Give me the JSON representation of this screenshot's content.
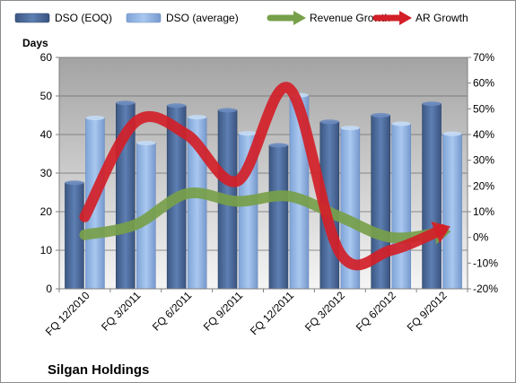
{
  "chart_data": {
    "type": "bar",
    "categories": [
      "FQ 12/2010",
      "FQ 3/2011",
      "FQ 6/2011",
      "FQ 9/2011",
      "FQ 12/2011",
      "FQ 3/2012",
      "FQ 6/2012",
      "FQ 9/2012"
    ],
    "series": [
      {
        "name": "DSO (EOQ)",
        "type": "bar",
        "axis": "left",
        "color": "#4f6e9f",
        "values": [
          27.5,
          48.2,
          47.5,
          46.3,
          37.2,
          43.3,
          45.0,
          48.0
        ]
      },
      {
        "name": "DSO (average)",
        "type": "bar",
        "axis": "left",
        "color": "#8fb3e2",
        "values": [
          44.3,
          37.8,
          44.5,
          40.3,
          50.2,
          41.7,
          42.8,
          40.2
        ]
      },
      {
        "name": "Revenue Growth",
        "type": "line",
        "axis": "right",
        "unit": "%",
        "color": "#77a04a",
        "values": [
          1,
          5,
          17,
          14,
          16,
          8,
          0,
          2
        ]
      },
      {
        "name": "AR Growth",
        "type": "line",
        "axis": "right",
        "unit": "%",
        "color": "#d21f28",
        "values": [
          8,
          45,
          40,
          22,
          58,
          -6,
          -5,
          3
        ]
      }
    ],
    "ylabel": "Days",
    "ylim": [
      0,
      60
    ],
    "yticks": [
      "0",
      "10",
      "20",
      "30",
      "40",
      "50",
      "60"
    ],
    "y2lim": [
      -20,
      70
    ],
    "y2ticks": [
      "-20%",
      "-10%",
      "0%",
      "10%",
      "20%",
      "30%",
      "40%",
      "50%",
      "60%",
      "70%"
    ],
    "legend_position": "top",
    "grid": true,
    "caption": "Silgan Holdings"
  }
}
